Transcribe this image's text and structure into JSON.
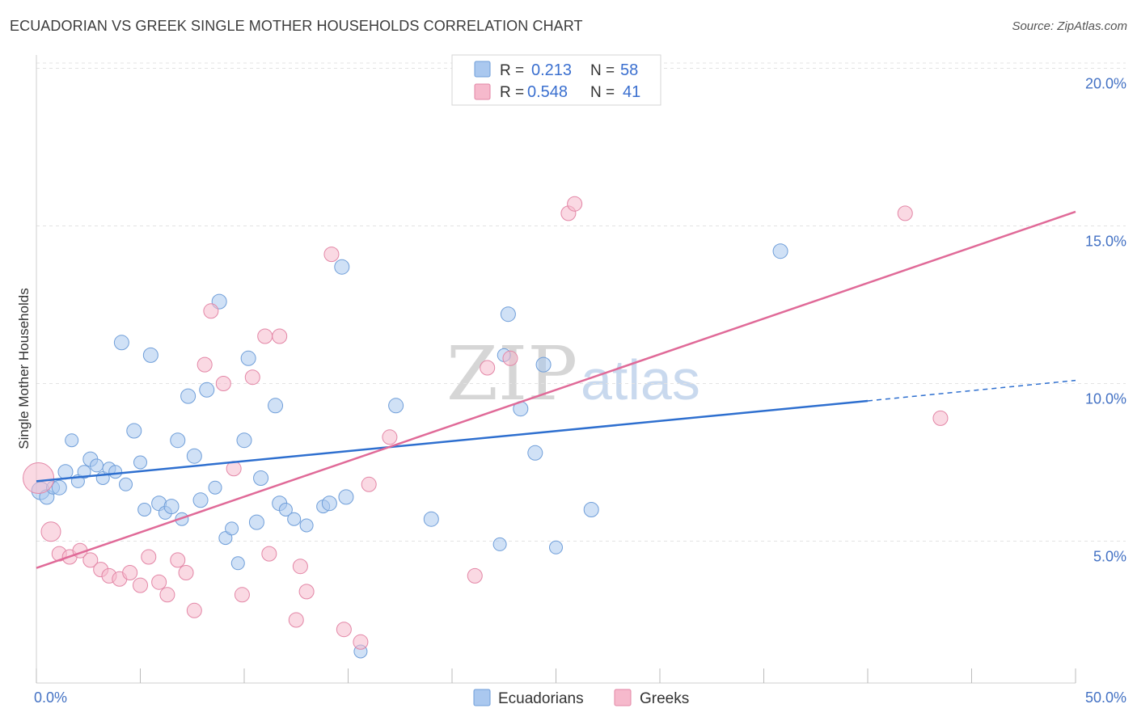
{
  "title": "ECUADORIAN VS GREEK SINGLE MOTHER HOUSEHOLDS CORRELATION CHART",
  "source": "Source: ZipAtlas.com",
  "watermark": {
    "zip": "ZIP",
    "atlas": "atlas"
  },
  "colors": {
    "ecuadorians_fill": "#aac8ef",
    "ecuadorians_stroke": "#6f9ed9",
    "ecuadorians_line": "#2e6fcf",
    "greeks_fill": "#f6b9cc",
    "greeks_stroke": "#e386a6",
    "greeks_line": "#e06a98",
    "grid": "#e3e3e3",
    "tick_label": "#4472c4"
  },
  "legend": {
    "rows": [
      {
        "r_label": "R =",
        "r_value": "0.213",
        "n_label": "N =",
        "n_value": "58",
        "series": "ecuadorians"
      },
      {
        "r_label": "R =",
        "r_value": "0.548",
        "n_label": "N =",
        "n_value": "41",
        "series": "greeks"
      }
    ]
  },
  "chart_data": {
    "type": "scatter",
    "title": "ECUADORIAN VS GREEK SINGLE MOTHER HOUSEHOLDS CORRELATION CHART",
    "xlabel": "",
    "ylabel": "Single Mother Households",
    "xlim": [
      0,
      50
    ],
    "ylim": [
      0.5,
      20.5
    ],
    "x_tick_labels": [
      "0.0%",
      "50.0%"
    ],
    "y_ticks": [
      5,
      10,
      15,
      20
    ],
    "y_tick_labels": [
      "5.0%",
      "10.0%",
      "15.0%",
      "20.0%"
    ],
    "grid": "horizontal dashed",
    "legend_position": "top-center",
    "series": [
      {
        "name": "Ecuadorians",
        "R": 0.213,
        "N": 58,
        "trend": {
          "x0": 0,
          "y0": 6.9,
          "x1": 40,
          "y1": 9.45,
          "dashed_to_x": 50,
          "dashed_to_y": 10.1
        },
        "points": [
          {
            "x": 0.2,
            "y": 6.6,
            "s": 11
          },
          {
            "x": 0.5,
            "y": 6.4,
            "s": 9
          },
          {
            "x": 0.8,
            "y": 6.7,
            "s": 8
          },
          {
            "x": 1.1,
            "y": 6.7,
            "s": 9
          },
          {
            "x": 1.4,
            "y": 7.2,
            "s": 9
          },
          {
            "x": 1.7,
            "y": 8.2,
            "s": 8
          },
          {
            "x": 2.0,
            "y": 6.9,
            "s": 8
          },
          {
            "x": 2.3,
            "y": 7.2,
            "s": 8
          },
          {
            "x": 2.6,
            "y": 7.6,
            "s": 9
          },
          {
            "x": 2.9,
            "y": 7.4,
            "s": 8
          },
          {
            "x": 3.2,
            "y": 7.0,
            "s": 8
          },
          {
            "x": 3.5,
            "y": 7.3,
            "s": 8
          },
          {
            "x": 3.8,
            "y": 7.2,
            "s": 8
          },
          {
            "x": 4.1,
            "y": 11.3,
            "s": 9
          },
          {
            "x": 4.3,
            "y": 6.8,
            "s": 8
          },
          {
            "x": 4.7,
            "y": 8.5,
            "s": 9
          },
          {
            "x": 5.0,
            "y": 7.5,
            "s": 8
          },
          {
            "x": 5.2,
            "y": 6.0,
            "s": 8
          },
          {
            "x": 5.5,
            "y": 10.9,
            "s": 9
          },
          {
            "x": 5.9,
            "y": 6.2,
            "s": 9
          },
          {
            "x": 6.2,
            "y": 5.9,
            "s": 8
          },
          {
            "x": 6.5,
            "y": 6.1,
            "s": 9
          },
          {
            "x": 6.8,
            "y": 8.2,
            "s": 9
          },
          {
            "x": 7.0,
            "y": 5.7,
            "s": 8
          },
          {
            "x": 7.3,
            "y": 9.6,
            "s": 9
          },
          {
            "x": 7.6,
            "y": 7.7,
            "s": 9
          },
          {
            "x": 7.9,
            "y": 6.3,
            "s": 9
          },
          {
            "x": 8.2,
            "y": 9.8,
            "s": 9
          },
          {
            "x": 8.6,
            "y": 6.7,
            "s": 8
          },
          {
            "x": 8.8,
            "y": 12.6,
            "s": 9
          },
          {
            "x": 9.1,
            "y": 5.1,
            "s": 8
          },
          {
            "x": 9.4,
            "y": 5.4,
            "s": 8
          },
          {
            "x": 9.7,
            "y": 4.3,
            "s": 8
          },
          {
            "x": 10.0,
            "y": 8.2,
            "s": 9
          },
          {
            "x": 10.2,
            "y": 10.8,
            "s": 9
          },
          {
            "x": 10.6,
            "y": 5.6,
            "s": 9
          },
          {
            "x": 10.8,
            "y": 7.0,
            "s": 9
          },
          {
            "x": 11.5,
            "y": 9.3,
            "s": 9
          },
          {
            "x": 11.7,
            "y": 6.2,
            "s": 9
          },
          {
            "x": 12.0,
            "y": 6.0,
            "s": 8
          },
          {
            "x": 12.4,
            "y": 5.7,
            "s": 8
          },
          {
            "x": 13.0,
            "y": 5.5,
            "s": 8
          },
          {
            "x": 13.8,
            "y": 6.1,
            "s": 8
          },
          {
            "x": 14.1,
            "y": 6.2,
            "s": 9
          },
          {
            "x": 14.7,
            "y": 13.7,
            "s": 9
          },
          {
            "x": 14.9,
            "y": 6.4,
            "s": 9
          },
          {
            "x": 15.6,
            "y": 1.5,
            "s": 8
          },
          {
            "x": 17.3,
            "y": 9.3,
            "s": 9
          },
          {
            "x": 19.0,
            "y": 5.7,
            "s": 9
          },
          {
            "x": 22.3,
            "y": 4.9,
            "s": 8
          },
          {
            "x": 22.5,
            "y": 10.9,
            "s": 8
          },
          {
            "x": 22.7,
            "y": 12.2,
            "s": 9
          },
          {
            "x": 23.3,
            "y": 9.2,
            "s": 9
          },
          {
            "x": 24.0,
            "y": 7.8,
            "s": 9
          },
          {
            "x": 24.4,
            "y": 10.6,
            "s": 9
          },
          {
            "x": 25.0,
            "y": 4.8,
            "s": 8
          },
          {
            "x": 26.7,
            "y": 6.0,
            "s": 9
          },
          {
            "x": 35.8,
            "y": 14.2,
            "s": 9
          }
        ]
      },
      {
        "name": "Greeks",
        "R": 0.548,
        "N": 41,
        "trend": {
          "x0": 0,
          "y0": 4.15,
          "x1": 50,
          "y1": 15.45
        },
        "points": [
          {
            "x": 0.1,
            "y": 7.0,
            "s": 19
          },
          {
            "x": 0.7,
            "y": 5.3,
            "s": 12
          },
          {
            "x": 1.1,
            "y": 4.6,
            "s": 9
          },
          {
            "x": 1.6,
            "y": 4.5,
            "s": 9
          },
          {
            "x": 2.1,
            "y": 4.7,
            "s": 9
          },
          {
            "x": 2.6,
            "y": 4.4,
            "s": 9
          },
          {
            "x": 3.1,
            "y": 4.1,
            "s": 9
          },
          {
            "x": 3.5,
            "y": 3.9,
            "s": 9
          },
          {
            "x": 4.0,
            "y": 3.8,
            "s": 9
          },
          {
            "x": 4.5,
            "y": 4.0,
            "s": 9
          },
          {
            "x": 5.0,
            "y": 3.6,
            "s": 9
          },
          {
            "x": 5.4,
            "y": 4.5,
            "s": 9
          },
          {
            "x": 5.9,
            "y": 3.7,
            "s": 9
          },
          {
            "x": 6.3,
            "y": 3.3,
            "s": 9
          },
          {
            "x": 6.8,
            "y": 4.4,
            "s": 9
          },
          {
            "x": 7.2,
            "y": 4.0,
            "s": 9
          },
          {
            "x": 7.6,
            "y": 2.8,
            "s": 9
          },
          {
            "x": 8.1,
            "y": 10.6,
            "s": 9
          },
          {
            "x": 8.4,
            "y": 12.3,
            "s": 9
          },
          {
            "x": 9.0,
            "y": 10.0,
            "s": 9
          },
          {
            "x": 9.5,
            "y": 7.3,
            "s": 9
          },
          {
            "x": 9.9,
            "y": 3.3,
            "s": 9
          },
          {
            "x": 10.4,
            "y": 10.2,
            "s": 9
          },
          {
            "x": 11.2,
            "y": 4.6,
            "s": 9
          },
          {
            "x": 11.0,
            "y": 11.5,
            "s": 9
          },
          {
            "x": 11.7,
            "y": 11.5,
            "s": 9
          },
          {
            "x": 12.5,
            "y": 2.5,
            "s": 9
          },
          {
            "x": 12.7,
            "y": 4.2,
            "s": 9
          },
          {
            "x": 13.0,
            "y": 3.4,
            "s": 9
          },
          {
            "x": 14.2,
            "y": 14.1,
            "s": 9
          },
          {
            "x": 14.8,
            "y": 2.2,
            "s": 9
          },
          {
            "x": 15.6,
            "y": 1.8,
            "s": 9
          },
          {
            "x": 16.0,
            "y": 6.8,
            "s": 9
          },
          {
            "x": 17.0,
            "y": 8.3,
            "s": 9
          },
          {
            "x": 21.1,
            "y": 3.9,
            "s": 9
          },
          {
            "x": 21.7,
            "y": 10.5,
            "s": 9
          },
          {
            "x": 22.8,
            "y": 10.8,
            "s": 9
          },
          {
            "x": 25.6,
            "y": 15.4,
            "s": 9
          },
          {
            "x": 25.9,
            "y": 15.7,
            "s": 9
          },
          {
            "x": 41.8,
            "y": 15.4,
            "s": 9
          },
          {
            "x": 43.5,
            "y": 8.9,
            "s": 9
          }
        ]
      }
    ]
  },
  "bottom_legend": [
    {
      "label": "Ecuadorians",
      "series": "ecuadorians"
    },
    {
      "label": "Greeks",
      "series": "greeks"
    }
  ]
}
